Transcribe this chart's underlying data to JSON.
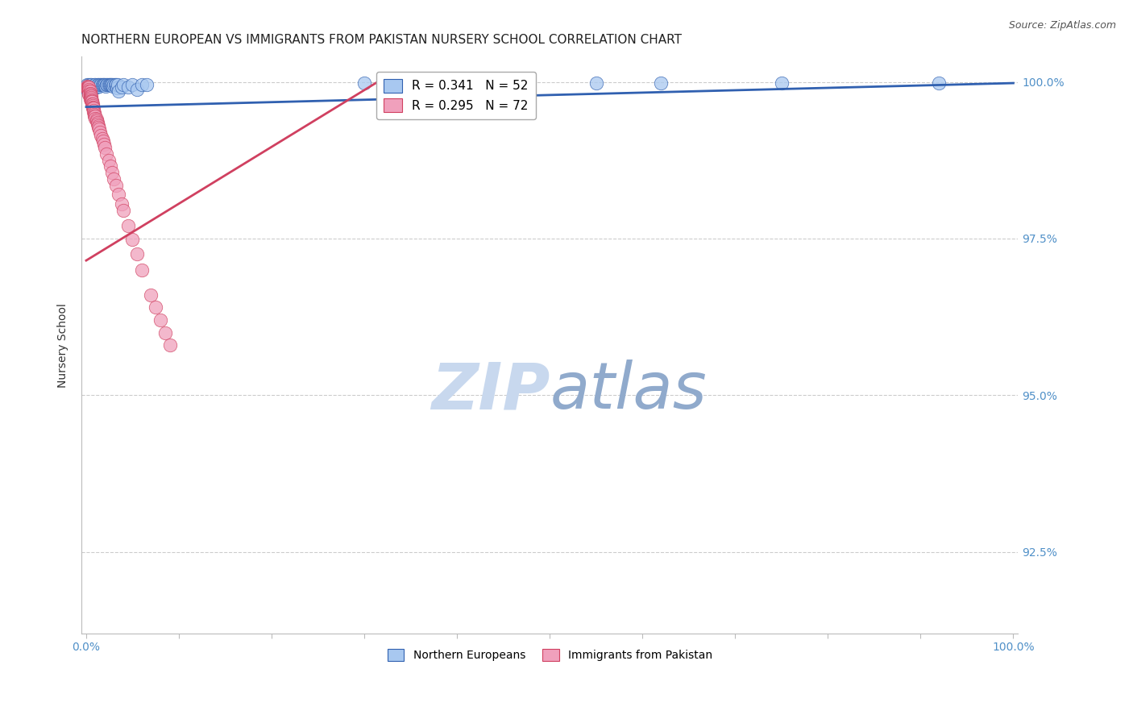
{
  "title": "NORTHERN EUROPEAN VS IMMIGRANTS FROM PAKISTAN NURSERY SCHOOL CORRELATION CHART",
  "source": "Source: ZipAtlas.com",
  "ylabel": "Nursery School",
  "ylabel_right_ticks": [
    "100.0%",
    "97.5%",
    "95.0%",
    "92.5%"
  ],
  "ylabel_right_values": [
    1.0,
    0.975,
    0.95,
    0.925
  ],
  "legend_blue_label": "R = 0.341   N = 52",
  "legend_pink_label": "R = 0.295   N = 72",
  "legend_blue_label2": "Northern Europeans",
  "legend_pink_label2": "Immigrants from Pakistan",
  "blue_color": "#A8C8F0",
  "pink_color": "#F0A0BC",
  "trendline_blue_color": "#3060B0",
  "trendline_pink_color": "#D04060",
  "watermark_zip_color": "#B8CCE8",
  "watermark_atlas_color": "#88AACC",
  "background_color": "#FFFFFF",
  "grid_color": "#CCCCCC",
  "axis_label_color": "#5090C8",
  "blue_scatter_x": [
    0.001,
    0.002,
    0.002,
    0.003,
    0.003,
    0.004,
    0.004,
    0.005,
    0.005,
    0.006,
    0.007,
    0.008,
    0.009,
    0.01,
    0.011,
    0.012,
    0.013,
    0.014,
    0.015,
    0.016,
    0.017,
    0.018,
    0.019,
    0.02,
    0.021,
    0.022,
    0.023,
    0.024,
    0.025,
    0.026,
    0.027,
    0.028,
    0.029,
    0.03,
    0.031,
    0.032,
    0.033,
    0.034,
    0.035,
    0.038,
    0.04,
    0.045,
    0.05,
    0.055,
    0.06,
    0.065,
    0.3,
    0.4,
    0.55,
    0.62,
    0.75,
    0.92
  ],
  "blue_scatter_y": [
    0.9995,
    0.999,
    0.9985,
    0.9995,
    0.999,
    0.9995,
    0.999,
    0.9995,
    0.999,
    0.999,
    0.9992,
    0.999,
    0.9995,
    0.9995,
    0.9992,
    0.9995,
    0.9995,
    0.9993,
    0.9995,
    0.9995,
    0.9995,
    0.9995,
    0.9995,
    0.9995,
    0.9993,
    0.9995,
    0.9995,
    0.9995,
    0.9995,
    0.9995,
    0.9995,
    0.9995,
    0.9993,
    0.9995,
    0.9995,
    0.9995,
    0.999,
    0.9995,
    0.9985,
    0.9992,
    0.9995,
    0.9992,
    0.9995,
    0.9988,
    0.9995,
    0.9995,
    0.9998,
    0.9998,
    0.9998,
    0.9998,
    0.9998,
    0.9998
  ],
  "pink_scatter_x": [
    0.0005,
    0.001,
    0.001,
    0.001,
    0.001,
    0.001,
    0.002,
    0.002,
    0.002,
    0.002,
    0.003,
    0.003,
    0.003,
    0.003,
    0.003,
    0.003,
    0.004,
    0.004,
    0.004,
    0.004,
    0.004,
    0.004,
    0.005,
    0.005,
    0.005,
    0.005,
    0.006,
    0.006,
    0.006,
    0.007,
    0.007,
    0.007,
    0.007,
    0.008,
    0.008,
    0.008,
    0.009,
    0.009,
    0.009,
    0.01,
    0.01,
    0.011,
    0.011,
    0.012,
    0.012,
    0.013,
    0.013,
    0.014,
    0.015,
    0.016,
    0.017,
    0.018,
    0.019,
    0.02,
    0.022,
    0.024,
    0.026,
    0.028,
    0.03,
    0.032,
    0.035,
    0.038,
    0.04,
    0.045,
    0.05,
    0.055,
    0.06,
    0.07,
    0.075,
    0.08,
    0.085,
    0.09
  ],
  "pink_scatter_y": [
    0.999,
    0.999,
    0.9992,
    0.9993,
    0.999,
    0.999,
    0.999,
    0.9992,
    0.999,
    0.9988,
    0.999,
    0.9992,
    0.9988,
    0.9985,
    0.9982,
    0.998,
    0.9985,
    0.9982,
    0.998,
    0.9978,
    0.9975,
    0.9972,
    0.9978,
    0.9975,
    0.9972,
    0.997,
    0.997,
    0.9968,
    0.9965,
    0.9965,
    0.9962,
    0.996,
    0.9958,
    0.9958,
    0.9955,
    0.9952,
    0.995,
    0.9948,
    0.9945,
    0.9945,
    0.9942,
    0.994,
    0.9938,
    0.9935,
    0.9932,
    0.993,
    0.9928,
    0.9925,
    0.992,
    0.9915,
    0.991,
    0.9905,
    0.99,
    0.9895,
    0.9885,
    0.9875,
    0.9865,
    0.9855,
    0.9845,
    0.9835,
    0.982,
    0.9805,
    0.9795,
    0.977,
    0.9748,
    0.9725,
    0.97,
    0.966,
    0.964,
    0.962,
    0.96,
    0.958
  ],
  "blue_trendline_x": [
    0.0,
    1.0
  ],
  "blue_trendline_y": [
    0.996,
    0.9998
  ],
  "pink_trendline_x": [
    0.0,
    0.32
  ],
  "pink_trendline_y": [
    0.9715,
    1.0005
  ],
  "xlim": [
    -0.005,
    1.005
  ],
  "ylim": [
    0.912,
    1.004
  ],
  "title_fontsize": 11,
  "source_fontsize": 9,
  "axis_fontsize": 10,
  "tick_fontsize": 10
}
